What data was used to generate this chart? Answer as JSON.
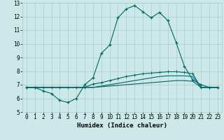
{
  "xlabel": "Humidex (Indice chaleur)",
  "background_color": "#cce8e8",
  "grid_color": "#aacccc",
  "line_color": "#006666",
  "xlim": [
    -0.5,
    23.5
  ],
  "ylim": [
    5,
    13
  ],
  "xticks": [
    0,
    1,
    2,
    3,
    4,
    5,
    6,
    7,
    8,
    9,
    10,
    11,
    12,
    13,
    14,
    15,
    16,
    17,
    18,
    19,
    20,
    21,
    22,
    23
  ],
  "yticks": [
    5,
    6,
    7,
    8,
    9,
    10,
    11,
    12,
    13
  ],
  "line1_x": [
    0,
    1,
    2,
    3,
    4,
    5,
    6,
    7,
    8,
    9,
    10,
    11,
    12,
    13,
    14,
    15,
    16,
    17,
    18,
    19,
    20,
    21,
    22,
    23
  ],
  "line1_y": [
    6.8,
    6.8,
    6.55,
    6.35,
    5.85,
    5.7,
    6.0,
    7.0,
    7.5,
    9.3,
    9.9,
    11.9,
    12.55,
    12.8,
    12.35,
    11.9,
    12.3,
    11.7,
    10.1,
    8.35,
    7.35,
    7.0,
    6.8,
    6.8
  ],
  "line2_x": [
    0,
    1,
    2,
    3,
    4,
    5,
    6,
    7,
    8,
    9,
    10,
    11,
    12,
    13,
    14,
    15,
    16,
    17,
    18,
    19,
    20,
    21,
    22,
    23
  ],
  "line2_y": [
    6.8,
    6.8,
    6.8,
    6.8,
    6.8,
    6.8,
    6.8,
    6.8,
    7.05,
    7.15,
    7.3,
    7.45,
    7.6,
    7.7,
    7.8,
    7.85,
    7.9,
    7.95,
    7.95,
    7.9,
    7.8,
    6.8,
    6.8,
    6.8
  ],
  "line3_x": [
    0,
    1,
    2,
    3,
    4,
    5,
    6,
    7,
    8,
    9,
    10,
    11,
    12,
    13,
    14,
    15,
    16,
    17,
    18,
    19,
    20,
    21,
    22,
    23
  ],
  "line3_y": [
    6.8,
    6.8,
    6.8,
    6.8,
    6.8,
    6.8,
    6.8,
    6.8,
    6.8,
    6.9,
    7.0,
    7.1,
    7.2,
    7.3,
    7.4,
    7.5,
    7.6,
    7.65,
    7.65,
    7.65,
    7.6,
    6.8,
    6.8,
    6.8
  ],
  "line4_x": [
    0,
    1,
    2,
    3,
    4,
    5,
    6,
    7,
    8,
    9,
    10,
    11,
    12,
    13,
    14,
    15,
    16,
    17,
    18,
    19,
    20,
    21,
    22,
    23
  ],
  "line4_y": [
    6.8,
    6.8,
    6.8,
    6.8,
    6.8,
    6.8,
    6.8,
    6.8,
    6.8,
    6.85,
    6.9,
    6.95,
    7.0,
    7.05,
    7.1,
    7.15,
    7.2,
    7.25,
    7.3,
    7.3,
    7.25,
    6.8,
    6.8,
    6.8
  ]
}
